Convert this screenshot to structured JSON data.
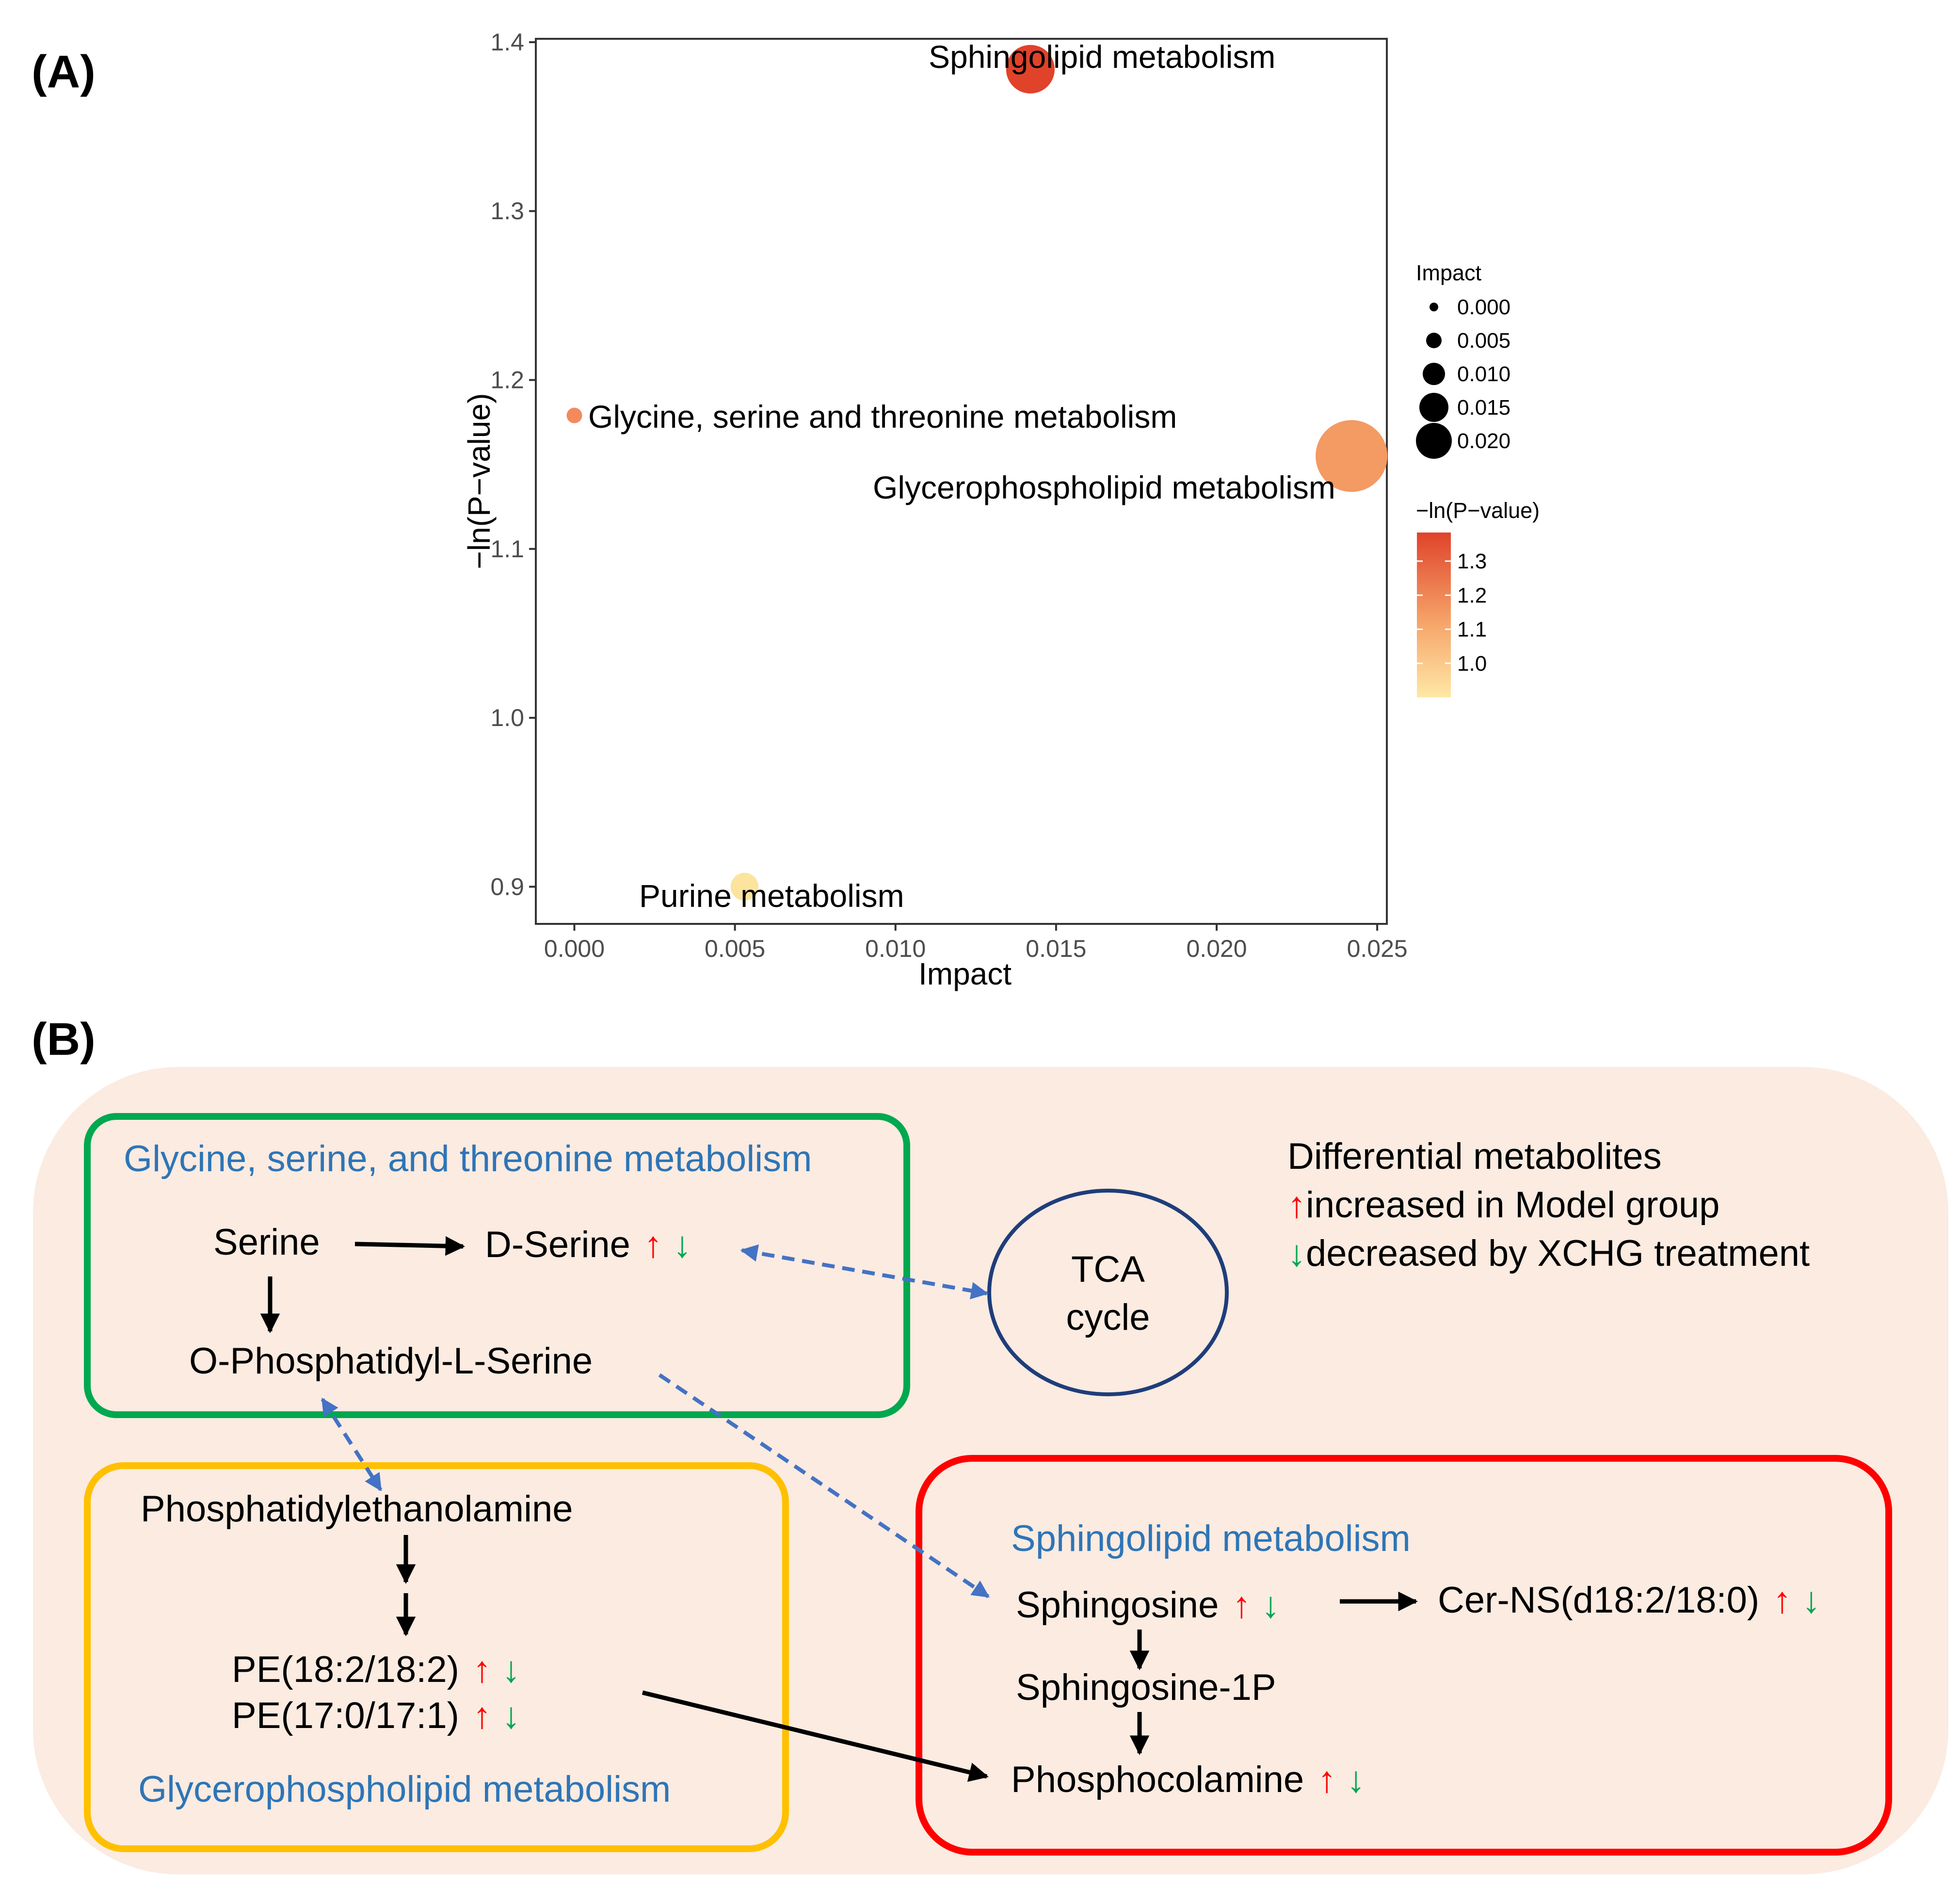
{
  "panel_labels": {
    "a": "(A)",
    "b": "(B)"
  },
  "colors": {
    "up_arrow": "#ff0000",
    "down_arrow": "#00a651",
    "pathway_text": "#2e75b6",
    "background_panel": "#fbebe1",
    "box_glycine": "#00a84f",
    "box_glycero": "#ffc000",
    "box_sphingo": "#ff0000",
    "tca_circle": "#1f3d7a",
    "dashed_link": "#4472c4"
  },
  "chart_data": {
    "type": "scatter",
    "title": "",
    "xlabel": "Impact",
    "ylabel": "−ln(P−value)",
    "xlim": [
      -0.0012,
      0.0253
    ],
    "ylim": [
      0.878,
      1.402
    ],
    "xticks": [
      0.0,
      0.005,
      0.01,
      0.015,
      0.02,
      0.025
    ],
    "xtick_labels": [
      "0.000",
      "0.005",
      "0.010",
      "0.015",
      "0.020",
      "0.025"
    ],
    "yticks": [
      0.9,
      1.0,
      1.1,
      1.2,
      1.3,
      1.4
    ],
    "ytick_labels": [
      "0.9",
      "1.0",
      "1.1",
      "1.2",
      "1.3",
      "1.4"
    ],
    "grid": false,
    "points": [
      {
        "label": "Sphingolipid metabolism",
        "x": 0.0142,
        "y": 1.384,
        "color": "#e0432a"
      },
      {
        "label": "Glycine, serine and threonine metabolism",
        "x": 0.0,
        "y": 1.179,
        "color": "#f4895c"
      },
      {
        "label": "Glycerophospholipid metabolism",
        "x": 0.0242,
        "y": 1.155,
        "color": "#f49a63"
      },
      {
        "label": "Purine metabolism",
        "x": 0.0053,
        "y": 0.9,
        "color": "#fce49f"
      }
    ],
    "legend_size": {
      "title": "Impact",
      "values": [
        0.0,
        0.005,
        0.01,
        0.015,
        0.02
      ],
      "labels": [
        "0.000",
        "0.005",
        "0.010",
        "0.015",
        "0.020"
      ]
    },
    "legend_color": {
      "title": "−ln(P−value)",
      "ticks": [
        1.3,
        1.2,
        1.1,
        1.0
      ],
      "tick_labels": [
        "1.3",
        "1.2",
        "1.1",
        "1.0"
      ],
      "range": [
        0.9,
        1.384
      ],
      "low_color": "#fee8a6",
      "high_color": "#e0432a"
    }
  },
  "diagram": {
    "up_arrow_glyph": "↑",
    "down_arrow_glyph": "↓",
    "legend": {
      "title": "Differential metabolites",
      "increased": "increased in Model group",
      "decreased": "decreased by XCHG treatment"
    },
    "glycine_box": {
      "title": "Glycine, serine, and threonine metabolism",
      "serine": "Serine",
      "d_serine": "D-Serine",
      "o_phosphatidyl_serine": "O-Phosphatidyl-L-Serine"
    },
    "tca": {
      "line1": "TCA",
      "line2": "cycle"
    },
    "glycero_box": {
      "title": "Glycerophospholipid metabolism",
      "phosphatidylethanolamine": "Phosphatidylethanolamine",
      "pe1": "PE(18:2/18:2)",
      "pe2": "PE(17:0/17:1)"
    },
    "sphingo_box": {
      "title": "Sphingolipid metabolism",
      "sphingosine": "Sphingosine",
      "cer_ns": "Cer-NS(d18:2/18:0)",
      "sphingosine_1p": "Sphingosine-1P",
      "phosphocolamine": "Phosphocolamine"
    }
  }
}
